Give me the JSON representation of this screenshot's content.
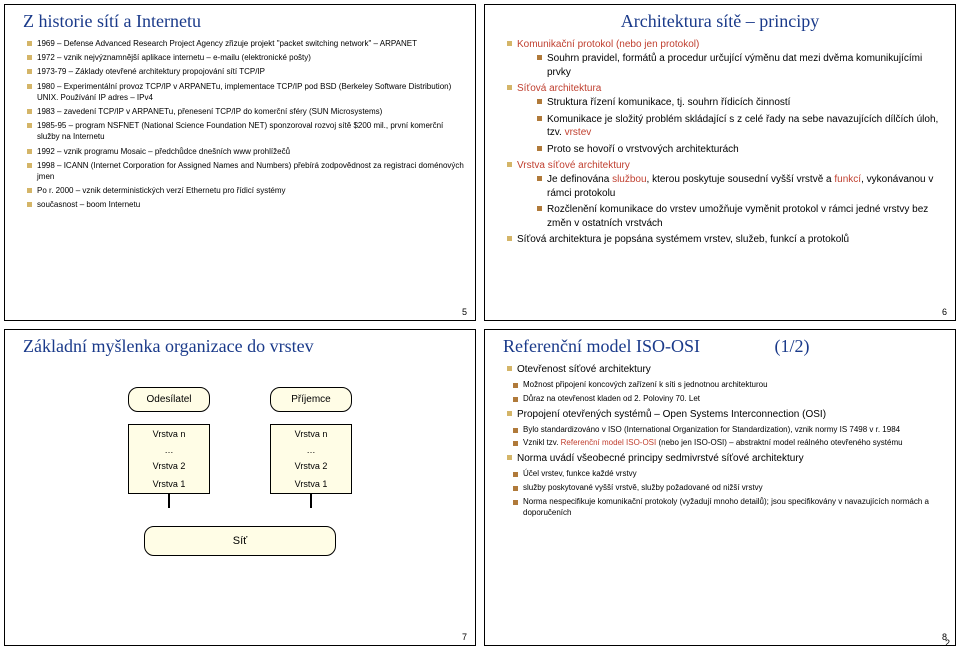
{
  "page_footer": "2",
  "slide5": {
    "title": "Z historie sítí a Internetu",
    "items": [
      "1969 – Defense Advanced Research Project Agency zřizuje projekt \"packet switching network\" – ARPANET",
      "1972 – vznik nejvýznamnější aplikace internetu – e-mailu (elektronické pošty)",
      "1973-79 – Základy otevřené architektury propojování sítí TCP/IP",
      "1980 – Experimentální provoz TCP/IP v ARPANETu, implementace TCP/IP pod BSD (Berkeley Software Distribution) UNIX. Používání IP adres – IPv4",
      "1983 – zavedení TCP/IP v ARPANETu, přenesení TCP/IP do komerční sféry (SUN Microsystems)",
      "1985-95 – program NSFNET (National Science Foundation NET) sponzoroval rozvoj sítě $200 mil., první komerční služby na Internetu",
      "1992 – vznik programu Mosaic – předchůdce dnešních www prohlížečů",
      "1998 – ICANN (Internet Corporation for Assigned Names and Numbers) přebírá zodpovědnost za registraci doménových jmen",
      "Po r. 2000 – vznik deterministických verzí Ethernetu pro řídicí systémy",
      "současnost – boom Internetu"
    ],
    "page": "5"
  },
  "slide6": {
    "title": "Architektura sítě – principy",
    "b1_head": "Komunikační protokol (nebo jen protokol)",
    "b1_sub": "Souhrn pravidel, formátů a procedur určující výměnu dat mezi dvěma komunikujícími prvky",
    "b2_head": "Síťová architektura",
    "b2_s1": "Struktura řízení komunikace, tj. souhrn řídicích činností",
    "b2_s2_a": "Komunikace je složitý problém skládající s z celé řady na sebe navazujících dílčích úloh, tzv. ",
    "b2_s2_b": "vrstev",
    "b2_s3": "Proto se hovoří o vrstvových architekturách",
    "b3_head": "Vrstva síťové architektury",
    "b3_s1_a": "Je definována ",
    "b3_s1_b": "službou",
    "b3_s1_c": ", kterou poskytuje sousední vyšší vrstvě a ",
    "b3_s1_d": "funkcí",
    "b3_s1_e": ", vykonávanou v rámci protokolu",
    "b3_s2": "Rozčlenění komunikace do vrstev umožňuje vyměnit protokol v rámci jedné vrstvy bez změn v ostatních vrstvách",
    "b4_head": "Síťová architektura je popsána systémem vrstev, služeb, funkcí a protokolů",
    "page": "6"
  },
  "slide7": {
    "title": "Základní myšlenka organizace do vrstev",
    "sender": "Odesílatel",
    "receiver": "Příjemce",
    "vn": "Vrstva n",
    "dots": "…",
    "v2": "Vrstva 2",
    "v1": "Vrstva 1",
    "net": "Síť",
    "page": "7"
  },
  "slide8": {
    "title_main": "Referenční model ISO-OSI",
    "title_frac": "(1/2)",
    "b1_head": "Otevřenost síťové architektury",
    "b1_s1": "Možnost připojení koncových zařízení k síti s jednotnou architekturou",
    "b1_s2": "Důraz na otevřenost kladen od 2. Poloviny 70. Let",
    "b2_head": "Propojení otevřených systémů – Open Systems Interconnection (OSI)",
    "b2_s1": "Bylo standardizováno v ISO (International Organization for Standardization), vznik normy IS 7498 v r. 1984",
    "b2_s2_a": "Vznikl tzv. ",
    "b2_s2_b": "Referenční model ISO-OSI",
    "b2_s2_c": " (nebo jen ISO-OSI) – abstraktní model reálného otevřeného systému",
    "b3_head": "Norma uvádí všeobecné principy sedmivrstvé síťové architektury",
    "b3_s1": "Účel vrstev, funkce každé vrstvy",
    "b3_s2": "služby poskytované vyšší vrstvě, služby požadované od nižší vrstvy",
    "b3_s3": "Norma nespecifikuje komunikační protokoly (vyžadují mnoho detailů); jsou specifikovány v navazujících normách a doporučeních",
    "page": "8"
  }
}
